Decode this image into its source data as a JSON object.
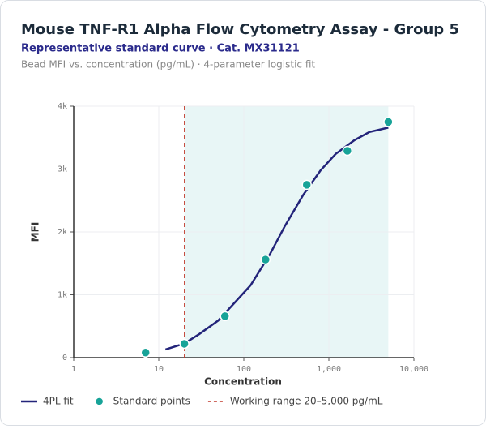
{
  "chart_data": {
    "type": "line",
    "title": "Mouse TNF-R1 Alpha Flow Cytometry Assay - Group 5",
    "subtitle": "Representative standard curve · Cat. MX31121",
    "caption": "Bead MFI vs. concentration (pg/mL) · 4-parameter logistic fit",
    "x_label": "Concentration",
    "y_label": "MFI",
    "x_scale": "log",
    "grid": true,
    "legend": "bottom",
    "xlim": [
      1,
      10000
    ],
    "xticks": [
      1,
      10,
      100,
      {
        "value": 1000,
        "label": "1,000"
      },
      {
        "value": 10000,
        "label": "10,000"
      }
    ],
    "ylim": [
      0,
      4000
    ],
    "yticks": [
      0,
      {
        "value": 1000,
        "label": "1k"
      },
      {
        "value": 2000,
        "label": "2k"
      },
      {
        "value": 3000,
        "label": "3k"
      },
      {
        "value": 4000,
        "label": "4k"
      }
    ],
    "working_range": {
      "name": "Working range 20–5,000 pg/mL",
      "color": "#c0392b",
      "fill": "#e8f6f6",
      "range": [
        20,
        5000
      ]
    },
    "series": [
      {
        "name": "4PL fit",
        "type": "line",
        "color": "#23247a",
        "x": [
          12,
          20,
          30,
          50,
          80,
          120,
          200,
          300,
          500,
          800,
          1200,
          2000,
          3000,
          5000
        ],
        "values": [
          130,
          225,
          375,
          590,
          890,
          1150,
          1630,
          2080,
          2590,
          2980,
          3240,
          3460,
          3590,
          3660
        ]
      },
      {
        "name": "Standard points",
        "type": "scatter",
        "color": "#17a398",
        "x": [
          7,
          20,
          60,
          180,
          550,
          1650,
          5000
        ],
        "values": [
          80,
          220,
          660,
          1560,
          2750,
          3290,
          3750
        ]
      }
    ]
  }
}
